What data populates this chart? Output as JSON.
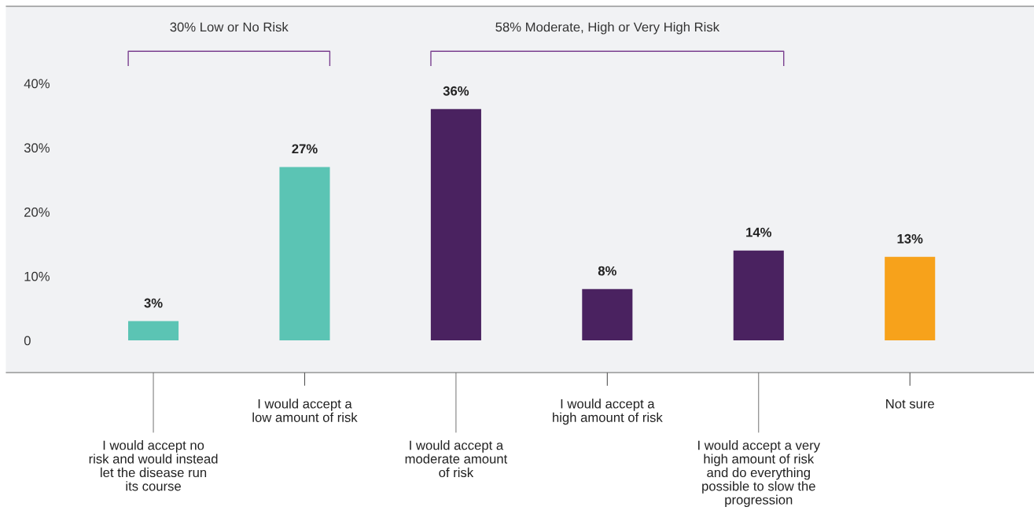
{
  "chart_data": {
    "type": "bar",
    "categories": [
      "I would accept no\nrisk and would instead\nlet the disease run\nits course",
      "I would accept a\nlow amount of risk",
      "I would accept a\nmoderate amount\nof risk",
      "I would accept a\nhigh amount of risk",
      "I would accept a very\nhigh amount of risk\nand do everything\npossible to slow the\nprogression",
      "Not sure"
    ],
    "values": [
      3,
      27,
      36,
      8,
      14,
      13
    ],
    "colors": [
      "#5bc4b4",
      "#5bc4b4",
      "#4a2260",
      "#4a2260",
      "#4a2260",
      "#f7a21b"
    ],
    "value_labels": [
      "3%",
      "27%",
      "36%",
      "8%",
      "14%",
      "13%"
    ],
    "ylim": [
      -5,
      52
    ],
    "yticks": [
      0,
      {
        "value": 10,
        "label": "10%"
      },
      {
        "value": 20,
        "label": "20%"
      },
      {
        "value": 30,
        "label": "30%"
      },
      {
        "value": 40,
        "label": "40%"
      }
    ],
    "grid": false,
    "legend": false,
    "annotations": [
      "30% Low or No Risk",
      "58% Moderate, High or Very High Risk"
    ]
  }
}
